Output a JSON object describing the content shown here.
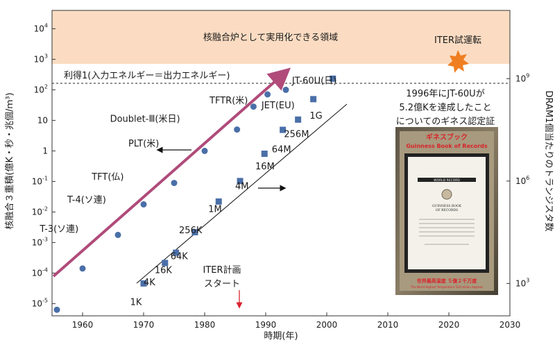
{
  "chart_data": {
    "type": "scatter",
    "xlabel": "時期(年)",
    "ylabel_left": "核融合３重積(億K・秒・兆個/ｍ³)",
    "ylabel_right": "DRAM1個当たりのトランジスタ数",
    "xlim": [
      1955,
      2030
    ],
    "x_ticks": [
      "1960",
      "1970",
      "1980",
      "1990",
      "2000",
      "2010",
      "2020",
      "2030"
    ],
    "y_ticks": [
      {
        "base": "10",
        "exp": "-5",
        "v": -5
      },
      {
        "base": "10",
        "exp": "-4",
        "v": -4
      },
      {
        "base": "10",
        "exp": "-3",
        "v": -3
      },
      {
        "base": "10",
        "exp": "-2",
        "v": -2
      },
      {
        "base": "10",
        "exp": "-1",
        "v": -1
      },
      {
        "base": "1",
        "exp": "",
        "v": 0
      },
      {
        "base": "10",
        "exp": "",
        "v": 1
      },
      {
        "base": "10",
        "exp": "2",
        "v": 2
      },
      {
        "base": "10",
        "exp": "3",
        "v": 3
      },
      {
        "base": "10",
        "exp": "4",
        "v": 4
      }
    ],
    "y_ticks_right": [
      {
        "base": "10",
        "exp": "3",
        "v": 3
      },
      {
        "base": "10",
        "exp": "6",
        "v": 6
      },
      {
        "base": "10",
        "exp": "9",
        "v": 9
      }
    ],
    "ylim_left_log10": [
      -5.4,
      4.6
    ],
    "ylim_right_log10": [
      2.05,
      11.0
    ],
    "series": [
      {
        "name": "fusion",
        "marker": "circle",
        "points": [
          {
            "x": 1955.8,
            "y": -5.2
          },
          {
            "x": 1960,
            "y": -3.85
          },
          {
            "x": 1965.8,
            "y": -2.75
          },
          {
            "x": 1970,
            "y": -1.75
          },
          {
            "x": 1975,
            "y": -1.05
          },
          {
            "x": 1980,
            "y": 0.0
          },
          {
            "x": 1985.3,
            "y": 0.7
          },
          {
            "x": 1988,
            "y": 1.45
          },
          {
            "x": 1990.3,
            "y": 1.85
          },
          {
            "x": 1993.3,
            "y": 2.0
          }
        ]
      },
      {
        "name": "dram",
        "marker": "square",
        "points": [
          {
            "x": 1970,
            "y": 3.0
          },
          {
            "x": 1973.5,
            "y": 3.6
          },
          {
            "x": 1975.3,
            "y": 3.9
          },
          {
            "x": 1978.4,
            "y": 4.5
          },
          {
            "x": 1982.3,
            "y": 5.4
          },
          {
            "x": 1985.8,
            "y": 6.0
          },
          {
            "x": 1989.8,
            "y": 6.8
          },
          {
            "x": 1992.8,
            "y": 7.5
          },
          {
            "x": 1995.3,
            "y": 7.8
          },
          {
            "x": 1997.8,
            "y": 8.4
          },
          {
            "x": 2001,
            "y": 9.0
          }
        ]
      }
    ],
    "point_labels": [
      {
        "text": "T-3(ソ連)",
        "x": 1953.0,
        "y": -2.65,
        "anchor": "start"
      },
      {
        "text": "T-4(ソ連)",
        "x": 1957.5,
        "y": -1.7,
        "anchor": "start"
      },
      {
        "text": "TFT(仏)",
        "x": 1961.5,
        "y": -0.95,
        "anchor": "start"
      },
      {
        "text": "PLT(米)",
        "x": 1967.5,
        "y": 0.15,
        "anchor": "start"
      },
      {
        "text": "Doublet-Ⅲ(米日)",
        "x": 1964.5,
        "y": 0.95,
        "anchor": "start"
      },
      {
        "text": "TFTR(米)",
        "x": 1980.8,
        "y": 1.55,
        "anchor": "start"
      },
      {
        "text": "JET(EU)",
        "x": 1989.3,
        "y": 1.4,
        "anchor": "start"
      },
      {
        "text": "JT-60U(日)",
        "x": 1994.3,
        "y": 2.2,
        "anchor": "start"
      },
      {
        "text": "1K",
        "x": 1967.8,
        "y": -5.05,
        "anchor": "start"
      },
      {
        "text": "4K",
        "x": 1970.0,
        "y": -4.4,
        "anchor": "start"
      },
      {
        "text": "16K",
        "x": 1971.8,
        "y": -4.0,
        "anchor": "start"
      },
      {
        "text": "64K",
        "x": 1974.4,
        "y": -3.55,
        "anchor": "start"
      },
      {
        "text": "256K",
        "x": 1975.8,
        "y": -2.7,
        "anchor": "start"
      },
      {
        "text": "1M",
        "x": 1980.6,
        "y": -2.0,
        "anchor": "start"
      },
      {
        "text": "4M",
        "x": 1985.0,
        "y": -1.25,
        "anchor": "start"
      },
      {
        "text": "16M",
        "x": 1988.3,
        "y": -0.6,
        "anchor": "start"
      },
      {
        "text": "64M",
        "x": 1991.0,
        "y": -0.05,
        "anchor": "start"
      },
      {
        "text": "256M",
        "x": 1993.0,
        "y": 0.45,
        "anchor": "start"
      },
      {
        "text": "1G",
        "x": 1997.2,
        "y": 1.05,
        "anchor": "start"
      }
    ],
    "annotations": {
      "practical_region": "核融合炉として実用化できる領域",
      "breakeven": "利得1(入力エネルギー＝出力エネルギー)",
      "iter_operation": "ITER試運転",
      "iter_start_line1": "ITER計画",
      "iter_start_line2": "スタート",
      "guinness_line1": "1996年にJT-60Uが",
      "guinness_line2": "5.2億Kを達成したこと",
      "guinness_line3": "についてのギネス認定証"
    },
    "certificate": {
      "header_jp": "ギネスブック",
      "header_en": "Guinness Book of Records",
      "badge": "WORLD RECORD",
      "book_title_line1": "GUINNESS BOOK",
      "book_title_line2": "OF RECORDS",
      "footer_jp": "世界最高温度 ５億２千万度",
      "footer_en": "The World Highest Temperature 520 million degrees"
    },
    "colors": {
      "region_fill": "#fbdcc2",
      "fusion_trend": "#b04b7a",
      "marker": "#4a6fa8",
      "star": "#f07e22",
      "iter_arrow": "#d9232e"
    }
  }
}
